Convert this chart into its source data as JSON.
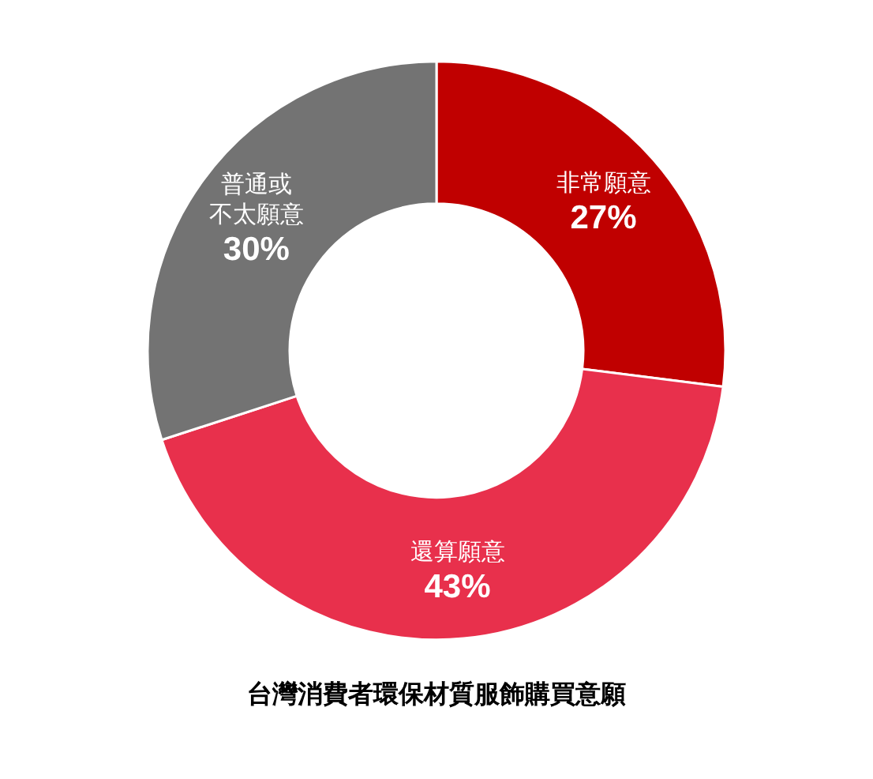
{
  "chart_data": {
    "type": "donut",
    "title": "台灣消費者環保材質服飾購買意願",
    "categories": [
      "非常願意",
      "還算願意",
      "普通或不太願意"
    ],
    "values": [
      27,
      43,
      30
    ],
    "value_labels": [
      "27%",
      "43%",
      "30%"
    ],
    "colors": [
      "#c00000",
      "#e8304c",
      "#737373"
    ],
    "legend": false
  }
}
